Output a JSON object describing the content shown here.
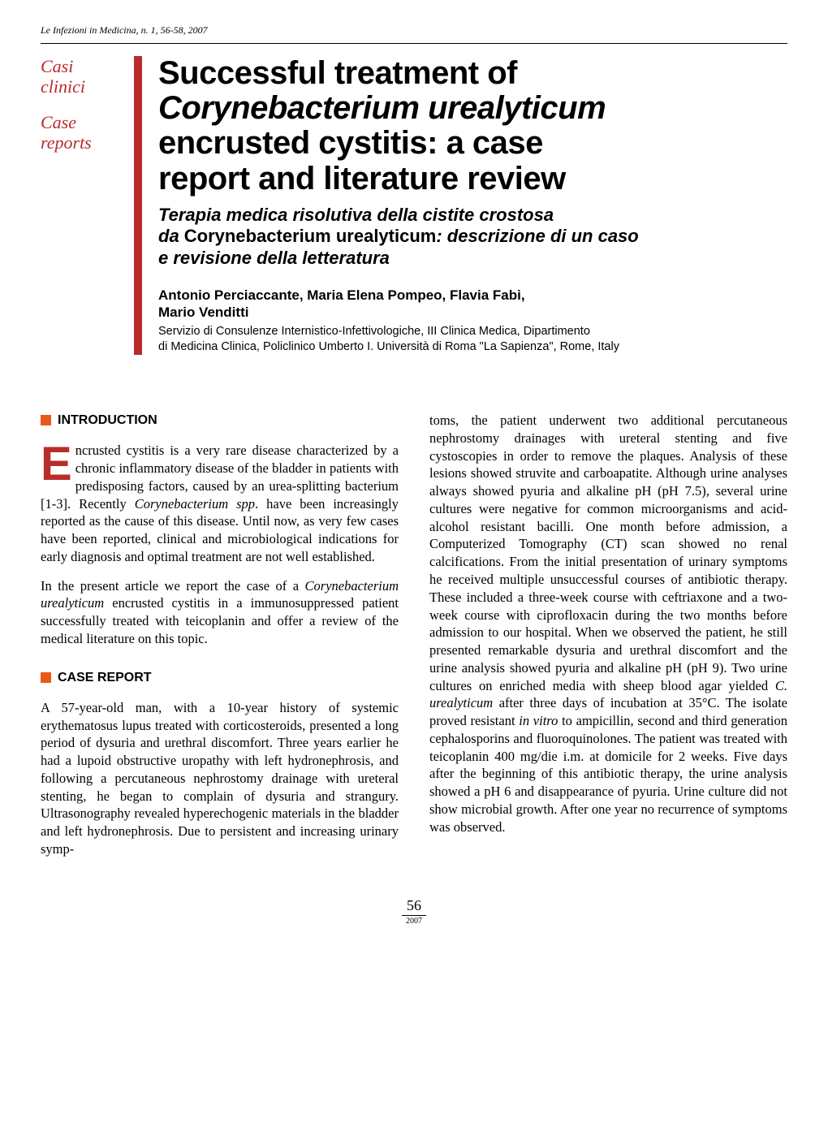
{
  "citation": "Le Infezioni in Medicina, n. 1, 56-58, 2007",
  "labels": {
    "it_line1": "Casi",
    "it_line2": "clinici",
    "en_line1": "Case",
    "en_line2": "reports"
  },
  "title": {
    "line1": "Successful treatment of",
    "line2_ital": "Corynebacterium urealyticum",
    "line3": "encrusted cystitis: a case",
    "line4": "report and literature review"
  },
  "subtitle": {
    "line1": "Terapia medica risolutiva della cistite crostosa",
    "line2_pre": "da ",
    "line2_norm": "Corynebacterium urealyticum",
    "line2_post": ": descrizione di un caso",
    "line3": "e revisione della letteratura"
  },
  "authors_line1": "Antonio Perciaccante, Maria Elena Pompeo, Flavia Fabi,",
  "authors_line2": "Mario Venditti",
  "affiliation_line1": "Servizio di Consulenze Internistico-Infettivologiche, III Clinica Medica, Dipartimento",
  "affiliation_line2": "di Medicina Clinica, Policlinico Umberto I. Università di Roma \"La Sapienza\", Rome, Italy",
  "sections": {
    "intro_head": "INTRODUCTION",
    "case_head": "CASE REPORT"
  },
  "intro_dropcap": "E",
  "intro_p1_first": "ncrusted cystitis is a very rare disease characterized by a chronic inflammatory disease of the bladder in patients with predisposing factors, caused by an urea-splitting bacterium [1-3]. Recently ",
  "intro_p1_ital": "Corynebacterium spp",
  "intro_p1_rest": ". have been increasingly reported as the cause of this disease. Until now, as very few cases have been reported, clinical and microbiological indications for early diagnosis and optimal treatment are not well established.",
  "intro_p2_pre": "In the present article we report the case of a ",
  "intro_p2_ital": "Corynebacterium urealyticum",
  "intro_p2_post": " encrusted cystitis in a immunosuppressed patient successfully treated with teicoplanin and offer a review of the medical literature on this topic.",
  "case_p1": "A 57-year-old man, with a 10-year history of systemic erythematosus lupus treated with corticosteroids, presented a long period of dysuria and urethral discomfort. Three years earlier he had a lupoid obstructive uropathy with left hydronephrosis, and following a percutaneous nephrostomy drainage with ureteral stenting, he began to complain of dysuria and strangury. Ultrasonography revealed hyperechogenic materials in the bladder and left hydronephrosis. Due to persistent and increasing urinary symp-",
  "col2_p1_pre": "toms, the patient underwent two additional percutaneous nephrostomy drainages with ureteral stenting and five cystoscopies in order to remove the plaques. Analysis of these lesions showed struvite and carboapatite. Although urine analyses always showed pyuria and alkaline pH (pH 7.5), several urine cultures were negative for common microorganisms and acid-alcohol resistant bacilli. One month before admission, a Computerized Tomography (CT) scan showed no renal calcifications. From the initial presentation of urinary symptoms he received multiple unsuccessful courses of antibiotic therapy. These included a three-week course with ceftriaxone and a two-week course with ciprofloxacin during the two months before admission to our hospital. When we observed the patient, he still presented remarkable dysuria and urethral discomfort and the urine analysis showed pyuria and alkaline pH (pH 9). Two urine cultures on enriched media with sheep blood agar yielded ",
  "col2_p1_ital": "C. urealyticum",
  "col2_p1_mid": " after three days of incubation at 35°C. The isolate proved resistant ",
  "col2_p1_ital2": "in vitro",
  "col2_p1_post": " to ampicillin, second and third generation cephalosporins and fluoroquinolones. The patient was treated with teicoplanin 400 mg/die i.m. at domicile for 2 weeks. Five days after the beginning of this antibiotic therapy, the urine analysis showed a pH 6 and disappearance of pyuria. Urine culture did not show microbial growth. After one year no recurrence of symptoms was observed.",
  "page_number": "56",
  "page_year": "2007",
  "colors": {
    "red": "#b82c2c",
    "orange": "#e85a1a",
    "text": "#000000",
    "bg": "#ffffff"
  },
  "typography": {
    "title_fontsize": 40,
    "subtitle_fontsize": 22,
    "authors_fontsize": 17,
    "affil_fontsize": 14.5,
    "body_fontsize": 16.5,
    "dropcap_fontsize": 58,
    "sechead_fontsize": 16
  }
}
